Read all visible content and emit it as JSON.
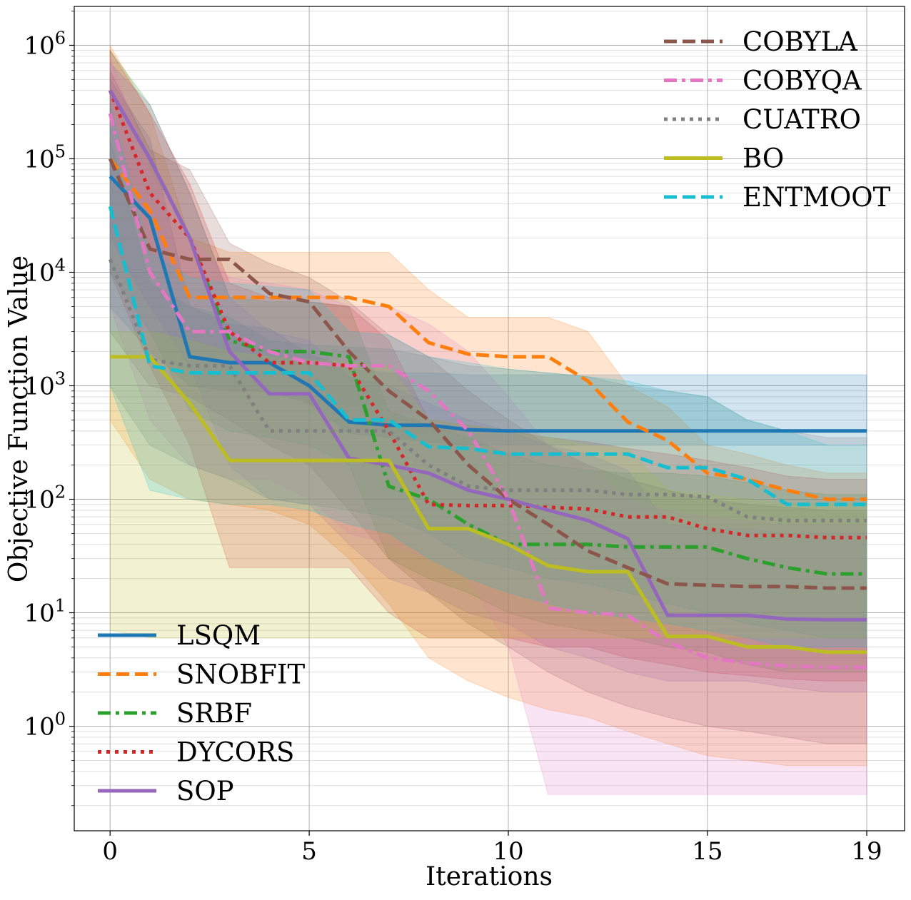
{
  "chart_data": {
    "type": "line",
    "xlabel": "Iterations",
    "ylabel": "Objective Function Value",
    "x_scale": "linear",
    "y_scale": "log",
    "xlim": [
      -0.9,
      19.95
    ],
    "ylim": [
      0.12,
      2200000
    ],
    "x_ticks": [
      0,
      5,
      10,
      15,
      19
    ],
    "x_tick_labels": [
      "0",
      "5",
      "10",
      "15",
      "19"
    ],
    "y_ticks": [
      1,
      10,
      100,
      1000,
      10000,
      100000,
      1000000
    ],
    "y_tick_labels": [
      {
        "base": "10",
        "exp": "0"
      },
      {
        "base": "10",
        "exp": "1"
      },
      {
        "base": "10",
        "exp": "2"
      },
      {
        "base": "10",
        "exp": "3"
      },
      {
        "base": "10",
        "exp": "4"
      },
      {
        "base": "10",
        "exp": "5"
      },
      {
        "base": "10",
        "exp": "6"
      }
    ],
    "grid": true,
    "minor_grid_y": true,
    "x": [
      0,
      1,
      2,
      3,
      4,
      5,
      6,
      7,
      8,
      9,
      10,
      11,
      12,
      13,
      14,
      15,
      16,
      17,
      18,
      19
    ],
    "legend_upper_right": [
      "COBYLA",
      "COBYQA",
      "CUATRO",
      "BO",
      "ENTMOOT"
    ],
    "legend_lower_left": [
      "LSQM",
      "SNOBFIT",
      "SRBF",
      "DYCORS",
      "SOP"
    ],
    "series": [
      {
        "name": "LSQM",
        "color": "#1f77b4",
        "dash": "solid",
        "values": [
          70000,
          30000,
          1800,
          1600,
          1600,
          1000,
          480,
          450,
          450,
          410,
          400,
          400,
          400,
          400,
          400,
          400,
          400,
          400,
          400,
          400
        ],
        "band_low": [
          5000,
          2000,
          1000,
          900,
          900,
          700,
          380,
          350,
          320,
          300,
          300,
          300,
          300,
          300,
          300,
          300,
          300,
          300,
          300,
          300
        ],
        "band_high": [
          500000,
          150000,
          5000,
          3500,
          3200,
          1900,
          1400,
          1300,
          1300,
          1250,
          1250,
          1250,
          1250,
          1250,
          1250,
          1250,
          1250,
          1250,
          1250,
          1250
        ]
      },
      {
        "name": "SNOBFIT",
        "color": "#ff7f0e",
        "dash": "dashed",
        "values": [
          100000,
          35000,
          6000,
          6000,
          6000,
          6000,
          6000,
          5000,
          2400,
          1900,
          1800,
          1800,
          1100,
          480,
          330,
          170,
          150,
          120,
          100,
          100
        ],
        "band_low": [
          500,
          150,
          100,
          90,
          80,
          60,
          30,
          12,
          4,
          2.5,
          1.8,
          1.4,
          1.2,
          0.9,
          0.7,
          0.55,
          0.5,
          0.45,
          0.45,
          0.45
        ],
        "band_high": [
          1000000,
          250000,
          20000,
          15000,
          15000,
          15000,
          15000,
          15000,
          7000,
          4000,
          4000,
          4000,
          3000,
          1000,
          650,
          300,
          250,
          200,
          170,
          170
        ]
      },
      {
        "name": "SRBF",
        "color": "#2ca02c",
        "dash": "dashdot",
        "values": [
          400000,
          100000,
          20000,
          2500,
          2000,
          2000,
          1800,
          130,
          100,
          60,
          40,
          40,
          40,
          38,
          38,
          38,
          30,
          25,
          22,
          22
        ],
        "band_low": [
          10000,
          3000,
          600,
          400,
          350,
          300,
          200,
          30,
          20,
          15,
          10,
          8,
          7,
          6,
          5,
          4.5,
          3.5,
          3,
          3,
          3
        ],
        "band_high": [
          900000,
          300000,
          50000,
          6000,
          5500,
          5500,
          5000,
          600,
          450,
          350,
          250,
          200,
          180,
          170,
          170,
          160,
          140,
          120,
          110,
          110
        ]
      },
      {
        "name": "DYCORS",
        "color": "#d62728",
        "dash": "dotted",
        "values": [
          400000,
          50000,
          20000,
          3000,
          1600,
          1600,
          1500,
          400,
          90,
          88,
          88,
          85,
          82,
          70,
          70,
          55,
          48,
          48,
          46,
          46
        ],
        "band_low": [
          10000,
          1500,
          300,
          25,
          25,
          25,
          25,
          10,
          6,
          6,
          6,
          5,
          5,
          4,
          3.5,
          3,
          2.8,
          2.6,
          2.5,
          2.5
        ],
        "band_high": [
          900000,
          250000,
          60000,
          8000,
          6000,
          5500,
          5000,
          2500,
          500,
          450,
          400,
          350,
          320,
          280,
          250,
          220,
          190,
          160,
          150,
          150
        ]
      },
      {
        "name": "SOP",
        "color": "#9467bd",
        "dash": "solid",
        "values": [
          400000,
          100000,
          20000,
          2000,
          850,
          850,
          230,
          200,
          170,
          120,
          100,
          80,
          65,
          45,
          9.5,
          9.5,
          9.5,
          8.8,
          8.7,
          8.7
        ],
        "band_low": [
          20000,
          5000,
          1500,
          200,
          100,
          90,
          40,
          20,
          15,
          10,
          8,
          5,
          4,
          3,
          2.5,
          2.5,
          2.5,
          2.2,
          2,
          2
        ],
        "band_high": [
          700000,
          300000,
          50000,
          6000,
          3000,
          2500,
          1200,
          1000,
          700,
          500,
          400,
          300,
          250,
          180,
          60,
          55,
          55,
          50,
          50,
          50
        ]
      },
      {
        "name": "COBYLA",
        "color": "#8c564b",
        "dash": "dashed",
        "values": [
          100000,
          16000,
          13000,
          13000,
          6500,
          5500,
          2000,
          900,
          500,
          200,
          100,
          60,
          35,
          25,
          18,
          17.5,
          17,
          17,
          16.5,
          16.5
        ],
        "band_low": [
          3000,
          1000,
          800,
          500,
          300,
          200,
          80,
          30,
          15,
          8,
          5,
          3,
          2,
          1.5,
          1.2,
          1,
          0.9,
          0.8,
          0.7,
          0.7
        ],
        "band_high": [
          600000,
          120000,
          80000,
          18000,
          12000,
          9000,
          5500,
          2800,
          1800,
          900,
          500,
          300,
          200,
          150,
          120,
          100,
          90,
          85,
          80,
          80
        ]
      },
      {
        "name": "COBYQA",
        "color": "#e377c2",
        "dash": "dashdot",
        "values": [
          250000,
          10000,
          3000,
          3000,
          2000,
          1600,
          1500,
          1500,
          900,
          400,
          100,
          11,
          10,
          9.5,
          5.5,
          4,
          3.6,
          3.4,
          3.3,
          3.3
        ],
        "band_low": [
          5000,
          500,
          200,
          150,
          150,
          100,
          50,
          40,
          30,
          20,
          5,
          0.25,
          0.25,
          0.25,
          0.25,
          0.25,
          0.25,
          0.25,
          0.25,
          0.25
        ],
        "band_high": [
          800000,
          80000,
          20000,
          9000,
          8000,
          7000,
          5000,
          5000,
          3500,
          2000,
          800,
          300,
          200,
          100,
          80,
          70,
          65,
          60,
          60,
          60
        ]
      },
      {
        "name": "CUATRO",
        "color": "#7f7f7f",
        "dash": "dotted",
        "values": [
          13000,
          1700,
          1500,
          1500,
          400,
          400,
          400,
          400,
          200,
          130,
          120,
          120,
          120,
          110,
          110,
          105,
          70,
          65,
          65,
          65
        ],
        "band_low": [
          1000,
          300,
          200,
          150,
          100,
          90,
          80,
          70,
          50,
          30,
          25,
          20,
          18,
          15,
          12,
          10,
          8,
          7,
          6,
          6
        ],
        "band_high": [
          150000,
          8000,
          5000,
          4000,
          2500,
          2300,
          2200,
          2100,
          1800,
          1500,
          1400,
          1300,
          1200,
          1000,
          900,
          800,
          500,
          400,
          350,
          350
        ]
      },
      {
        "name": "BO",
        "color": "#bcbd22",
        "dash": "solid",
        "values": [
          1800,
          1800,
          700,
          220,
          220,
          220,
          220,
          220,
          55,
          55,
          40,
          26,
          23,
          23,
          6.2,
          6.2,
          5,
          5,
          4.5,
          4.5
        ],
        "band_low": [
          7,
          6,
          6,
          6,
          6,
          6,
          6,
          6,
          6,
          6,
          6,
          6,
          6,
          6,
          6,
          6,
          6,
          6,
          6,
          6
        ],
        "band_high": [
          3000,
          3000,
          2500,
          2000,
          1800,
          1700,
          1600,
          1500,
          500,
          450,
          400,
          350,
          300,
          280,
          120,
          110,
          100,
          90,
          90,
          90
        ]
      },
      {
        "name": "ENTMOOT",
        "color": "#17becf",
        "dash": "dashed",
        "values": [
          38000,
          1500,
          1300,
          1300,
          1300,
          1300,
          500,
          500,
          290,
          280,
          250,
          250,
          250,
          250,
          190,
          190,
          150,
          90,
          90,
          90
        ],
        "band_low": [
          1000,
          120,
          100,
          90,
          90,
          80,
          60,
          50,
          30,
          20,
          15,
          12,
          10,
          9,
          8,
          7,
          6,
          5,
          5,
          5
        ],
        "band_high": [
          300000,
          15000,
          9000,
          8000,
          7500,
          7000,
          3000,
          2800,
          1800,
          1600,
          1400,
          1300,
          1200,
          1100,
          900,
          800,
          500,
          400,
          300,
          300
        ]
      }
    ]
  }
}
